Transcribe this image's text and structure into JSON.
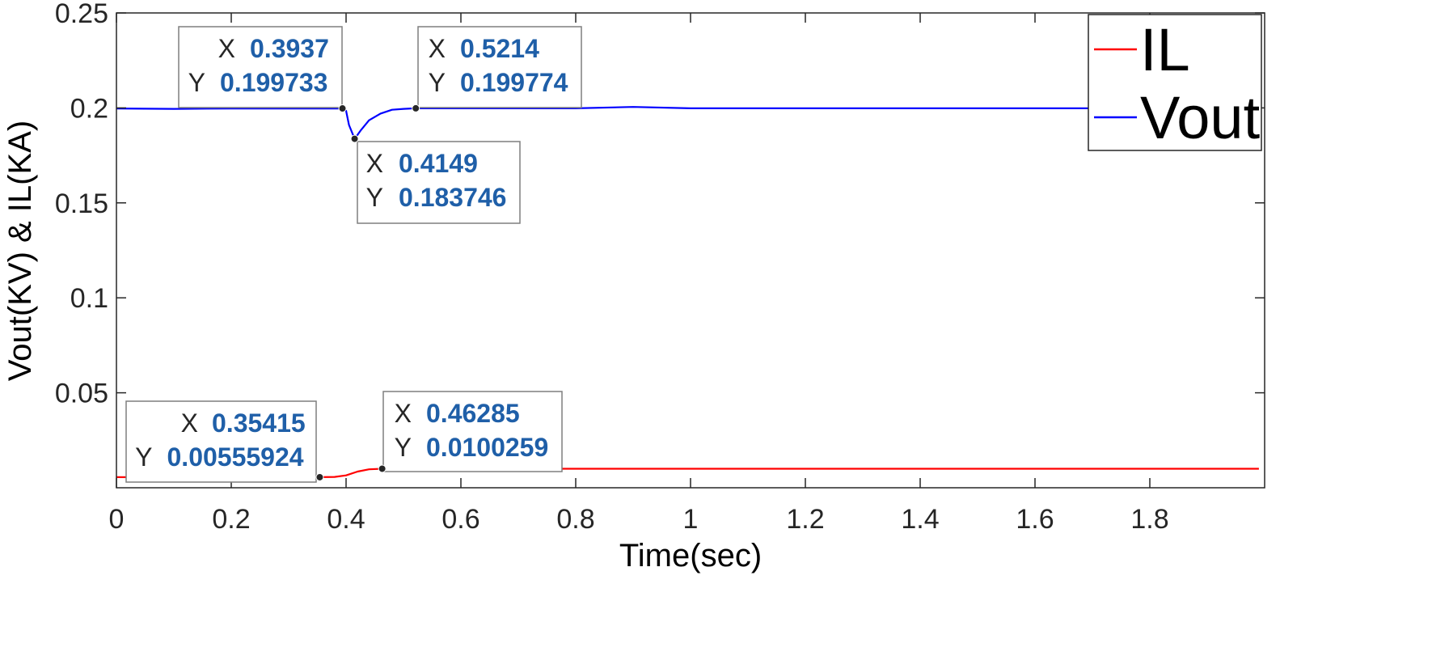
{
  "chart_data": {
    "type": "line",
    "title": "",
    "xlabel": "Time(sec)",
    "ylabel": "Vout(KV) & IL(KA)",
    "xlim": [
      0,
      2.0
    ],
    "ylim": [
      0,
      0.25
    ],
    "xticks": [
      0,
      0.2,
      0.4,
      0.6,
      0.8,
      1,
      1.2,
      1.4,
      1.6,
      1.8
    ],
    "xtick_labels": [
      "0",
      "0.2",
      "0.4",
      "0.6",
      "0.8",
      "1",
      "1.2",
      "1.4",
      "1.6",
      "1.8"
    ],
    "yticks": [
      0.05,
      0.1,
      0.15,
      0.2,
      0.25
    ],
    "ytick_labels": [
      "0.05",
      "0.1",
      "0.15",
      "0.2",
      "0.25"
    ],
    "grid": false,
    "legend_position": "top-right",
    "series": [
      {
        "name": "IL",
        "color": "#ff0000",
        "x": [
          0,
          0.1,
          0.2,
          0.3,
          0.354,
          0.38,
          0.4,
          0.42,
          0.44,
          0.463,
          0.5,
          0.6,
          0.8,
          1.0,
          1.2,
          1.4,
          1.6,
          1.8,
          1.99
        ],
        "y": [
          0.0056,
          0.0055,
          0.0056,
          0.0056,
          0.0056,
          0.0057,
          0.0065,
          0.0085,
          0.0097,
          0.01,
          0.01,
          0.01,
          0.01,
          0.01,
          0.01,
          0.01,
          0.01,
          0.01,
          0.01
        ]
      },
      {
        "name": "Vout",
        "color": "#0000ff",
        "x": [
          0,
          0.1,
          0.2,
          0.3,
          0.3937,
          0.4,
          0.405,
          0.4149,
          0.425,
          0.44,
          0.46,
          0.48,
          0.5,
          0.5214,
          0.6,
          0.8,
          0.9,
          1.0,
          1.2,
          1.4,
          1.6,
          1.8,
          1.99
        ],
        "y": [
          0.1997,
          0.1995,
          0.1997,
          0.1997,
          0.1997,
          0.1985,
          0.191,
          0.1837,
          0.188,
          0.1935,
          0.197,
          0.199,
          0.1995,
          0.1998,
          0.1998,
          0.1998,
          0.2005,
          0.1998,
          0.1998,
          0.1998,
          0.1998,
          0.1998,
          0.1998
        ]
      }
    ],
    "datatips": [
      {
        "series": "Vout",
        "x": 0.3937,
        "y": 0.199733,
        "x_label": "0.3937",
        "y_label": "0.199733"
      },
      {
        "series": "Vout",
        "x": 0.4149,
        "y": 0.183746,
        "x_label": "0.4149",
        "y_label": "0.183746"
      },
      {
        "series": "Vout",
        "x": 0.5214,
        "y": 0.199774,
        "x_label": "0.5214",
        "y_label": "0.199774"
      },
      {
        "series": "IL",
        "x": 0.35415,
        "y": 0.00555924,
        "x_label": "0.35415",
        "y_label": "0.00555924"
      },
      {
        "series": "IL",
        "x": 0.46285,
        "y": 0.0100259,
        "x_label": "0.46285",
        "y_label": "0.0100259"
      }
    ],
    "datatip_keys": {
      "x": "X",
      "y": "Y"
    }
  }
}
